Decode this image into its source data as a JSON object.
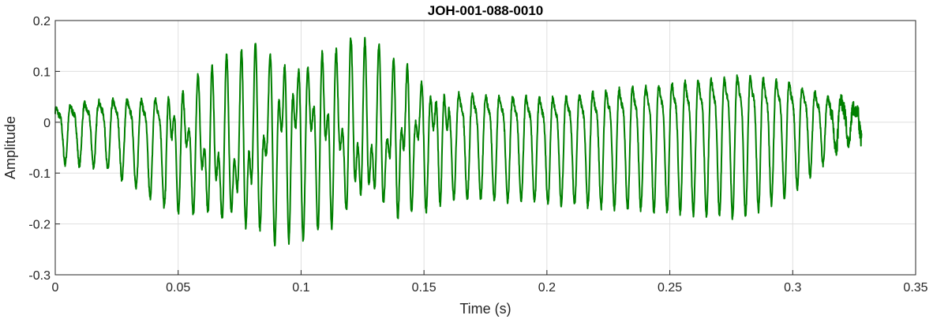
{
  "chart_data": {
    "type": "line",
    "title": "JOH-001-088-0010",
    "xlabel": "Time (s)",
    "ylabel": "Amplitude",
    "xlim": [
      0,
      0.35
    ],
    "ylim": [
      -0.3,
      0.2
    ],
    "x_ticks": [
      0,
      0.05,
      0.1,
      0.15,
      0.2,
      0.25,
      0.3,
      0.35
    ],
    "x_tick_labels": [
      "0",
      "0.05",
      "0.1",
      "0.15",
      "0.2",
      "0.25",
      "0.3",
      "0.35"
    ],
    "y_ticks": [
      -0.3,
      -0.2,
      -0.1,
      0,
      0.1,
      0.2
    ],
    "y_tick_labels": [
      "-0.3",
      "-0.2",
      "-0.1",
      "0",
      "0.1",
      "0.2"
    ],
    "grid": true,
    "series": [
      {
        "color": "#008000",
        "duration": 0.328,
        "envelope_upper": [
          [
            0,
            0.05
          ],
          [
            0.02,
            0.07
          ],
          [
            0.045,
            0.09
          ],
          [
            0.06,
            0.11
          ],
          [
            0.08,
            0.16
          ],
          [
            0.095,
            0.18
          ],
          [
            0.12,
            0.17
          ],
          [
            0.14,
            0.14
          ],
          [
            0.16,
            0.1
          ],
          [
            0.2,
            0.09
          ],
          [
            0.25,
            0.13
          ],
          [
            0.28,
            0.15
          ],
          [
            0.3,
            0.12
          ],
          [
            0.315,
            0.07
          ],
          [
            0.328,
            0.04
          ]
        ],
        "envelope_lower": [
          [
            0,
            -0.08
          ],
          [
            0.02,
            -0.09
          ],
          [
            0.045,
            -0.17
          ],
          [
            0.06,
            -0.21
          ],
          [
            0.07,
            -0.26
          ],
          [
            0.08,
            -0.26
          ],
          [
            0.1,
            -0.23
          ],
          [
            0.12,
            -0.22
          ],
          [
            0.14,
            -0.21
          ],
          [
            0.16,
            -0.15
          ],
          [
            0.2,
            -0.16
          ],
          [
            0.25,
            -0.18
          ],
          [
            0.28,
            -0.19
          ],
          [
            0.3,
            -0.14
          ],
          [
            0.315,
            -0.07
          ],
          [
            0.328,
            -0.03
          ]
        ],
        "cycle_period_start": 0.0058,
        "cycle_period_end": 0.0052
      }
    ]
  }
}
